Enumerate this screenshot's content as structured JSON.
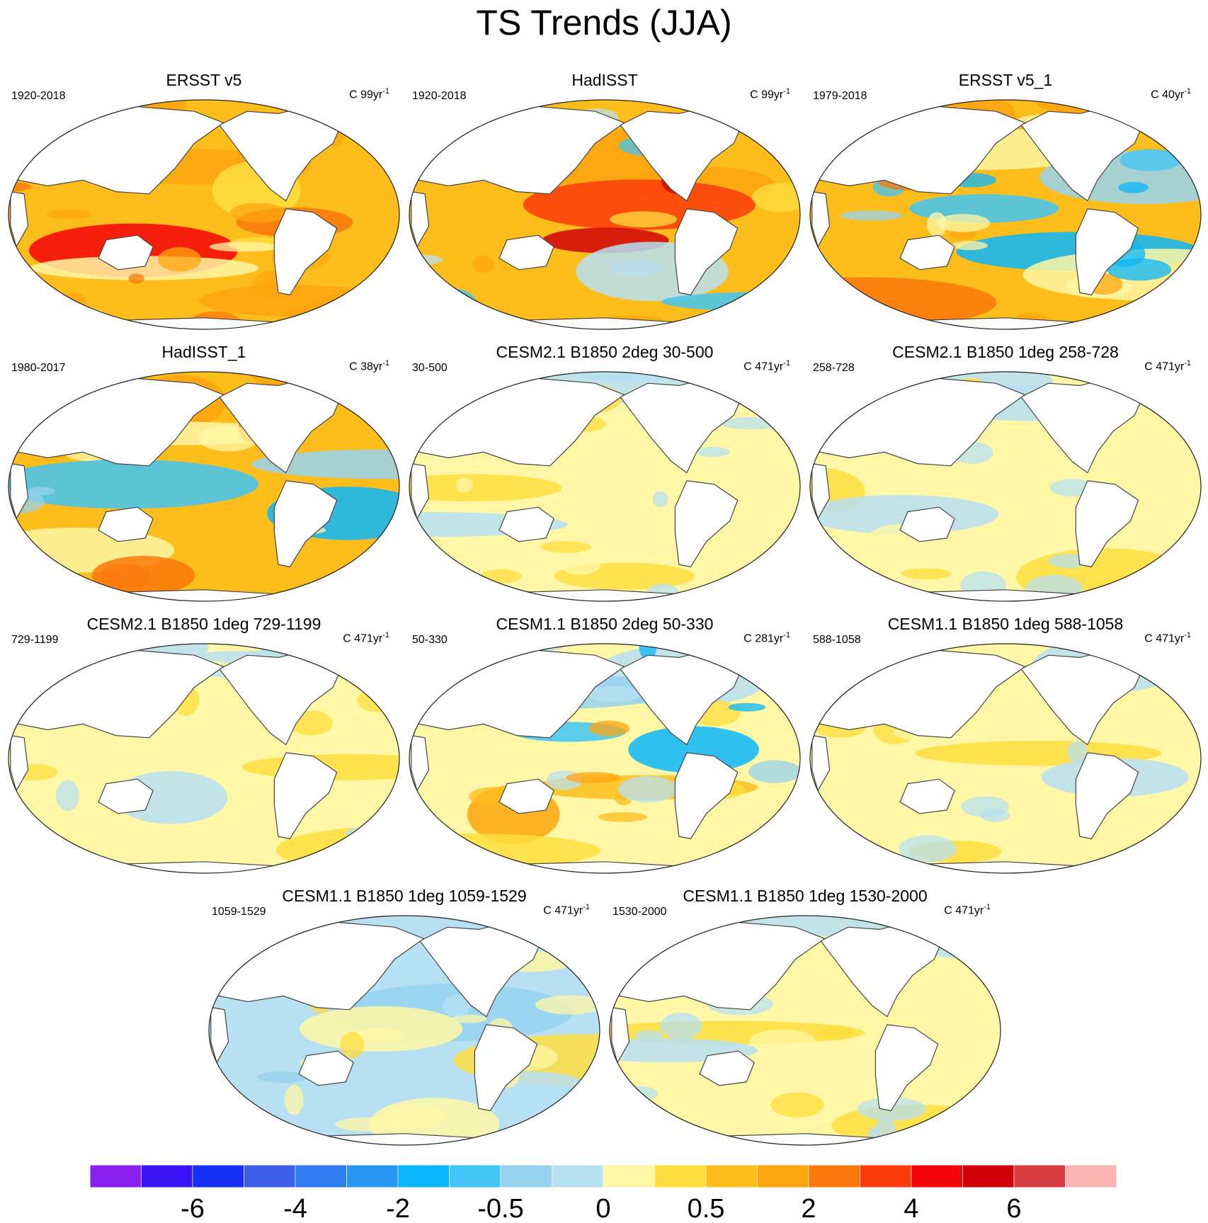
{
  "title": "TS Trends (JJA)",
  "chart_data": {
    "type": "heatmap",
    "title": "TS Trends (JJA)",
    "projection": "robinson",
    "colorbar": {
      "tick_labels": [
        "-6",
        "-4",
        "-2",
        "-0.5",
        "0",
        "0.5",
        "2",
        "4",
        "6"
      ],
      "colors": [
        "#8B1FF0",
        "#3A13F5",
        "#1530F0",
        "#3C5DE4",
        "#2F7BF0",
        "#2A96F0",
        "#0AB7FB",
        "#40C5F5",
        "#96D2EE",
        "#B7E0F3",
        "#FFF7A5",
        "#FFDE3E",
        "#FDBE1C",
        "#FDA50E",
        "#FB780C",
        "#FB3C0A",
        "#F40308",
        "#CF0208",
        "#D73D43",
        "#FBB4B4"
      ]
    },
    "panels": [
      {
        "title": "ERSST v5",
        "period": "1920-2018",
        "units": "C 99yr",
        "units_sup": "-1",
        "pattern": "warm",
        "intensity": 0.8
      },
      {
        "title": "HadISST",
        "period": "1920-2018",
        "units": "C 99yr",
        "units_sup": "-1",
        "pattern": "warm-mixed",
        "intensity": 0.85
      },
      {
        "title": "ERSST v5_1",
        "period": "1979-2018",
        "units": "C 40yr",
        "units_sup": "-1",
        "pattern": "warm-south-cool",
        "intensity": 0.8
      },
      {
        "title": "HadISST_1",
        "period": "1980-2017",
        "units": "C 38yr",
        "units_sup": "-1",
        "pattern": "warm-south-cool",
        "intensity": 0.8
      },
      {
        "title": "CESM2.1 B1850 2deg 30-500",
        "period": "30-500",
        "units": "C 471yr",
        "units_sup": "-1",
        "pattern": "neutral",
        "intensity": 0.3
      },
      {
        "title": "CESM2.1 B1850 1deg 258-728",
        "period": "258-728",
        "units": "C 471yr",
        "units_sup": "-1",
        "pattern": "neutral",
        "intensity": 0.3
      },
      {
        "title": "CESM2.1 B1850 1deg 729-1199",
        "period": "729-1199",
        "units": "C 471yr",
        "units_sup": "-1",
        "pattern": "neutral",
        "intensity": 0.3
      },
      {
        "title": "CESM1.1 B1850 2deg 50-330",
        "period": "50-330",
        "units": "C 281yr",
        "units_sup": "-1",
        "pattern": "neutral-strong",
        "intensity": 0.6
      },
      {
        "title": "CESM1.1 B1850 1deg 588-1058",
        "period": "588-1058",
        "units": "C 471yr",
        "units_sup": "-1",
        "pattern": "neutral",
        "intensity": 0.35
      },
      {
        "title": "CESM1.1 B1850 1deg 1059-1529",
        "period": "1059-1529",
        "units": "C 471yr",
        "units_sup": "-1",
        "pattern": "neutral-cool",
        "intensity": 0.3
      },
      {
        "title": "CESM1.1 B1850 1deg 1530-2000",
        "period": "1530-2000",
        "units": "C 471yr",
        "units_sup": "-1",
        "pattern": "neutral",
        "intensity": 0.3
      }
    ]
  }
}
